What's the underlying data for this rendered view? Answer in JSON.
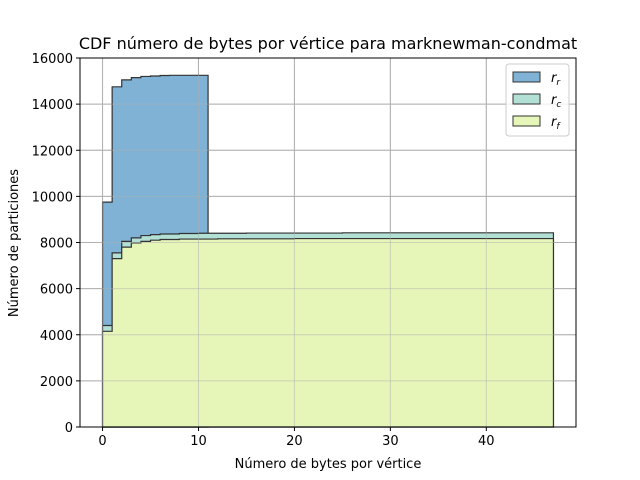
{
  "chart_data": {
    "type": "area",
    "title": "CDF número de bytes por vértice para marknewman-condmat",
    "xlabel": "Número de bytes por vértice",
    "ylabel": "Número de particiones",
    "xlim": [
      -2.35,
      49.35
    ],
    "ylim": [
      0,
      16000
    ],
    "xticks": [
      0,
      10,
      20,
      30,
      40
    ],
    "yticks": [
      0,
      2000,
      4000,
      6000,
      8000,
      10000,
      12000,
      14000,
      16000
    ],
    "grid": true,
    "legend_position": "top-right",
    "series": [
      {
        "name": "r_r",
        "legend_main": "r",
        "legend_sub": "r",
        "color": "#7fb2d5",
        "steps": [
          [
            0,
            9750
          ],
          [
            1,
            14750
          ],
          [
            2,
            15050
          ],
          [
            3,
            15150
          ],
          [
            4,
            15200
          ],
          [
            5,
            15220
          ],
          [
            6,
            15240
          ],
          [
            7,
            15250
          ],
          [
            11,
            0
          ]
        ]
      },
      {
        "name": "r_c",
        "legend_main": "r",
        "legend_sub": "c",
        "color": "#b3e0d5",
        "steps": [
          [
            0,
            4400
          ],
          [
            1,
            7550
          ],
          [
            2,
            8050
          ],
          [
            3,
            8200
          ],
          [
            4,
            8300
          ],
          [
            5,
            8340
          ],
          [
            6,
            8370
          ],
          [
            8,
            8390
          ],
          [
            10,
            8400
          ],
          [
            15,
            8410
          ],
          [
            25,
            8420
          ],
          [
            47,
            0
          ]
        ]
      },
      {
        "name": "r_f",
        "legend_main": "r",
        "legend_sub": "f",
        "color": "#e6f5b8",
        "steps": [
          [
            0,
            4150
          ],
          [
            1,
            7300
          ],
          [
            2,
            7800
          ],
          [
            3,
            7980
          ],
          [
            4,
            8050
          ],
          [
            5,
            8100
          ],
          [
            6,
            8130
          ],
          [
            8,
            8150
          ],
          [
            12,
            8160
          ],
          [
            20,
            8170
          ],
          [
            47,
            0
          ]
        ]
      }
    ]
  }
}
